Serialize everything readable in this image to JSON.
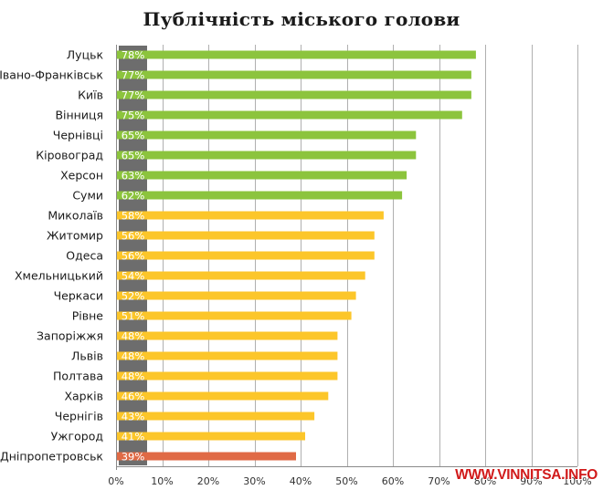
{
  "chart_data": {
    "type": "bar",
    "orientation": "horizontal",
    "title": "Публічність міського голови",
    "categories": [
      "Луцьк",
      "Івано-Франківськ",
      "Київ",
      "Вінниця",
      "Чернівці",
      "Кіровоград",
      "Херсон",
      "Суми",
      "Миколаїв",
      "Житомир",
      "Одеса",
      "Хмельницький",
      "Черкаси",
      "Рівне",
      "Запоріжжя",
      "Львів",
      "Полтава",
      "Харків",
      "Чернігів",
      "Ужгород",
      "Дніпропетровськ"
    ],
    "values": [
      78,
      77,
      77,
      75,
      65,
      65,
      63,
      62,
      58,
      56,
      56,
      54,
      52,
      51,
      48,
      48,
      48,
      46,
      43,
      41,
      39
    ],
    "value_labels": [
      "78%",
      "77%",
      "77%",
      "75%",
      "65%",
      "65%",
      "63%",
      "62%",
      "58%",
      "56%",
      "56%",
      "54%",
      "52%",
      "51%",
      "48%",
      "48%",
      "48%",
      "46%",
      "43%",
      "41%",
      "39%"
    ],
    "x_ticks": [
      "0%",
      "10%",
      "20%",
      "30%",
      "40%",
      "50%",
      "60%",
      "70%",
      "80%",
      "90%",
      "100%"
    ],
    "xlim": [
      0,
      100
    ],
    "grid": "vertical",
    "legend": "none",
    "colors": {
      "high": "#8cc43d",
      "mid": "#fcc62a",
      "low": "#e06a45",
      "label_box": "#6d6d6d",
      "grid": "#b0b0b0"
    }
  },
  "watermark": "WWW.VINNITSA.INFO"
}
